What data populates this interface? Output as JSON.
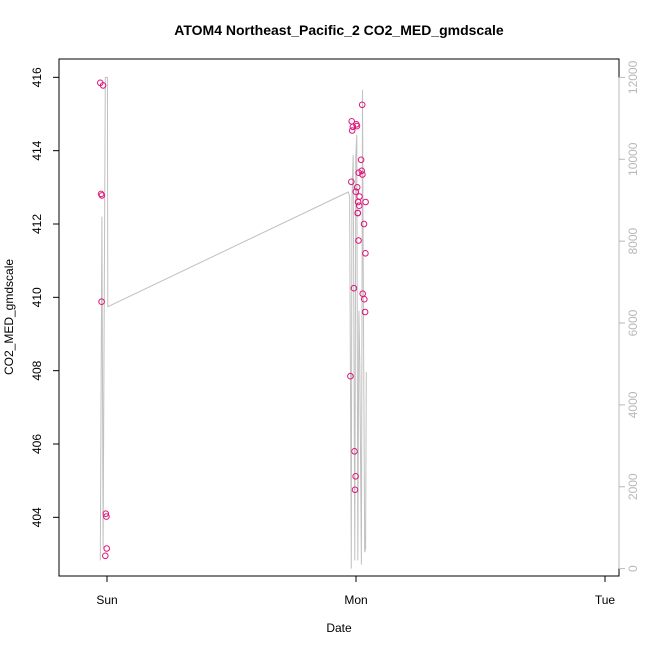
{
  "chart_data": {
    "type": "scatter",
    "title": "ATOM4 Northeast_Pacific_2 CO2_MED_gmdscale",
    "xlabel": "Date",
    "ylabel": "CO2_MED_gmdscale",
    "x_ticks": [
      "Sun",
      "Mon",
      "Tue"
    ],
    "y_ticks": [
      404,
      406,
      408,
      410,
      412,
      414,
      416
    ],
    "y2_ticks": [
      0,
      2000,
      4000,
      6000,
      8000,
      10000,
      12000
    ],
    "ylim": [
      402.4,
      416.5
    ],
    "y2lim": [
      -180,
      12450
    ],
    "grid": false,
    "legend": "none",
    "colors": {
      "points": "#e0157a",
      "line": "#c0c0c0",
      "axis": "#000000",
      "right_axis": "#b8b8b8"
    },
    "series": [
      {
        "kind": "points",
        "axis": "left",
        "x_hours": [
          -0.65,
          -0.57,
          -0.52,
          -0.49,
          -0.38,
          -0.16,
          -0.12,
          -0.06,
          -0.03,
          23.46,
          23.55,
          23.59,
          23.63,
          23.7,
          23.8,
          23.86,
          23.9,
          23.96,
          23.98,
          24.04,
          24.09,
          24.12,
          24.16,
          24.17,
          24.2,
          24.24,
          24.26,
          24.31,
          24.34,
          24.49,
          24.55,
          24.6,
          24.62,
          24.65,
          24.77,
          24.8,
          24.88,
          24.91,
          24.93
        ],
        "values": [
          415.85,
          412.82,
          409.88,
          412.78,
          415.78,
          402.95,
          404.1,
          404.02,
          403.15,
          407.85,
          413.15,
          414.8,
          414.55,
          414.65,
          410.25,
          405.8,
          404.75,
          405.12,
          412.88,
          414.72,
          414.67,
          413.0,
          412.3,
          412.3,
          412.6,
          411.55,
          413.4,
          412.5,
          412.75,
          413.75,
          413.45,
          415.25,
          413.35,
          410.1,
          412.0,
          409.95,
          409.6,
          411.2,
          412.6
        ]
      },
      {
        "kind": "line",
        "axis": "right",
        "x_hours": [
          -0.65,
          -0.49,
          -0.38,
          -0.16,
          -0.06,
          0.04,
          0.08,
          23.25,
          23.38,
          23.55,
          23.6,
          23.73,
          23.88,
          23.98,
          24.08,
          24.17,
          24.28,
          24.37,
          24.52,
          24.63,
          24.71,
          24.84,
          24.93,
          24.99
        ],
        "values": [
          200,
          8600,
          500,
          12000,
          12000,
          12000,
          6400,
          9200,
          9100,
          0,
          9000,
          10100,
          200,
          10100,
          10600,
          200,
          6300,
          5000,
          100,
          11700,
          6400,
          400,
          500,
          4800
        ]
      }
    ]
  }
}
